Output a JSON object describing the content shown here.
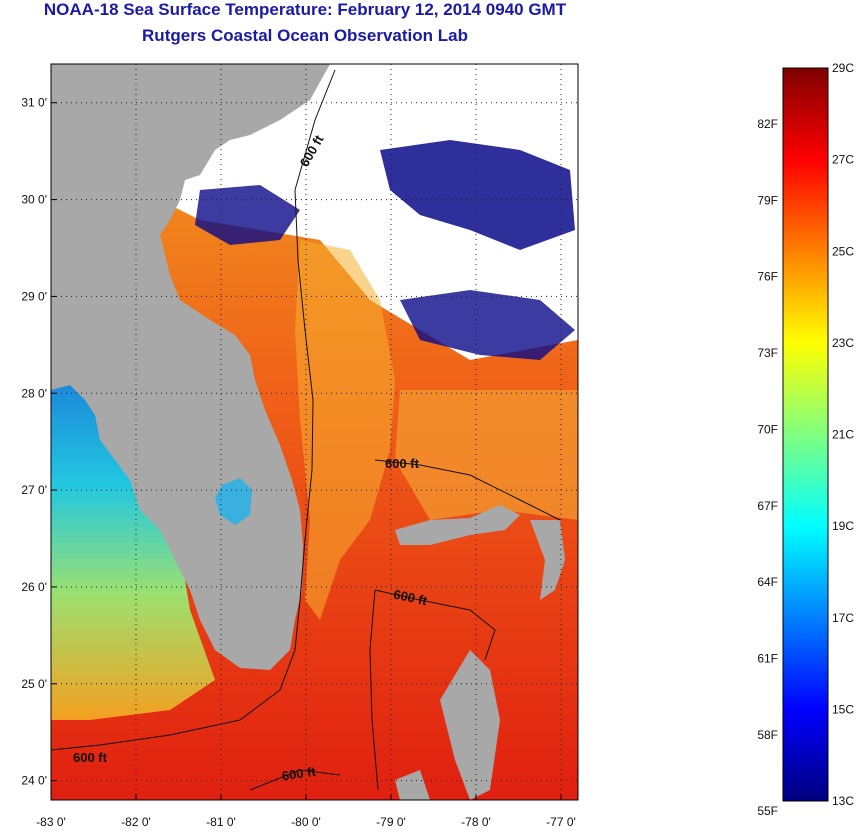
{
  "title": "NOAA-18 Sea Surface Temperature:  February 12, 2014 0940 GMT",
  "subtitle": "Rutgers Coastal Ocean Observation Lab",
  "map": {
    "lon_ticks": [
      "-83 0'",
      "-82 0'",
      "-81 0'",
      "-80 0'",
      "-79 0'",
      "-78 0'",
      "-77 0'"
    ],
    "lon_values": [
      -83,
      -82,
      -81,
      -80,
      -79,
      -78,
      -77
    ],
    "lat_ticks": [
      "31 0'",
      "30 0'",
      "29 0'",
      "28 0'",
      "27 0'",
      "26 0'",
      "25 0'",
      "24 0'"
    ],
    "lat_values": [
      31,
      30,
      29,
      28,
      27,
      26,
      25,
      24
    ],
    "lon_range": [
      -83,
      -76.8
    ],
    "lat_range": [
      23.8,
      31.4
    ],
    "grid": "dotted",
    "contour_labels": [
      "600 ft",
      "600 ft",
      "600 ft",
      "600 ft",
      "600 ft"
    ],
    "colors": {
      "land": "#a8a8a8",
      "cloud": "#ffffff",
      "cold": "#0a0a8a",
      "warm": "#f23a12"
    }
  },
  "colorbar": {
    "celsius": [
      "29C",
      "27C",
      "25C",
      "23C",
      "21C",
      "19C",
      "17C",
      "15C",
      "13C"
    ],
    "fahrenheit": [
      "82F",
      "79F",
      "76F",
      "73F",
      "70F",
      "67F",
      "64F",
      "61F",
      "58F",
      "55F"
    ],
    "range_c": [
      13,
      29
    ],
    "colors": [
      "#00007f",
      "#0000ff",
      "#0080ff",
      "#00ffff",
      "#80ff80",
      "#ffff00",
      "#ff8000",
      "#ff0000",
      "#7f0000"
    ]
  }
}
